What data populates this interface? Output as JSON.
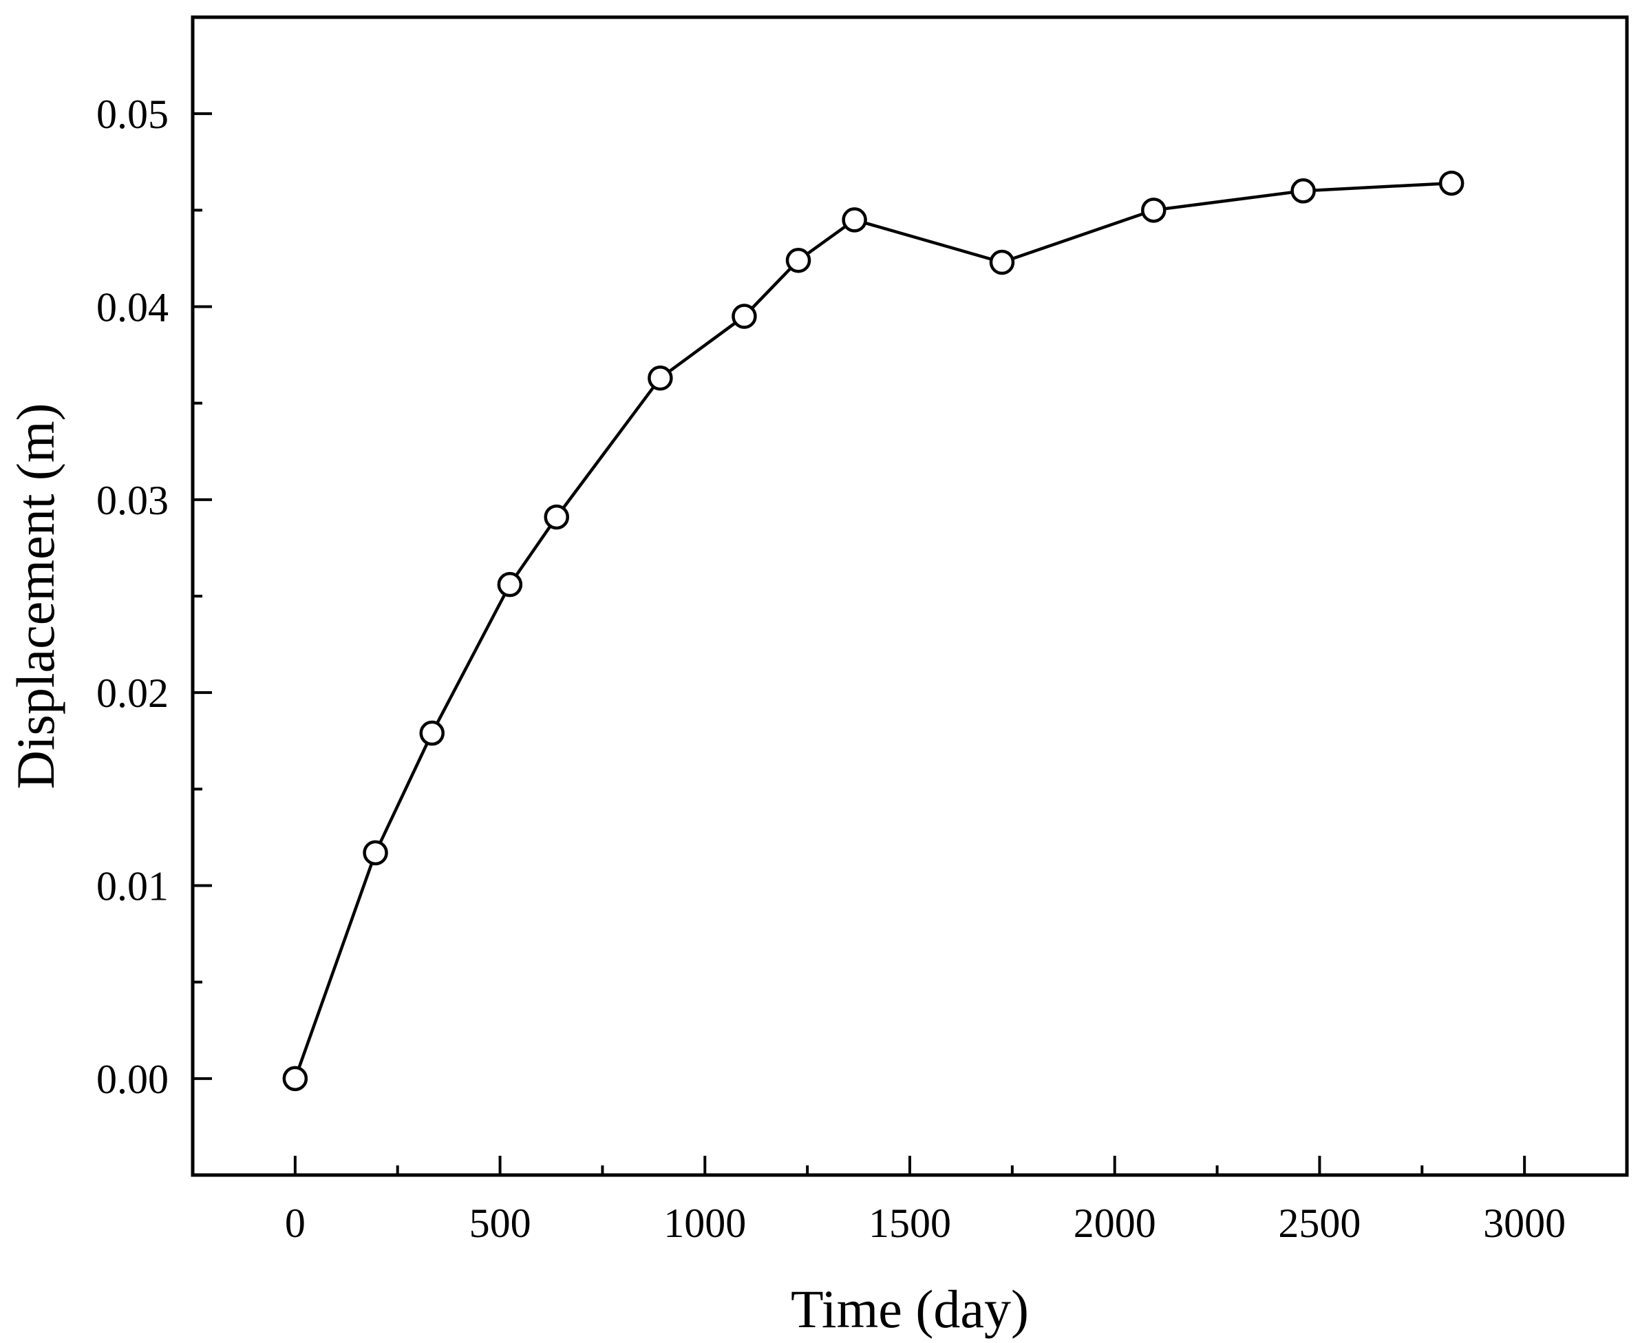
{
  "chart_data": {
    "type": "line",
    "xlabel": "Time (day)",
    "ylabel": "Displacement (m)",
    "xlim": [
      -250,
      3250
    ],
    "ylim": [
      -0.005,
      0.055
    ],
    "x_ticks": [
      0,
      500,
      1000,
      1500,
      2000,
      2500,
      3000
    ],
    "x_tick_labels": [
      "0",
      "500",
      "1000",
      "1500",
      "2000",
      "2500",
      "3000"
    ],
    "x_minor_ticks": [
      250,
      750,
      1250,
      1750,
      2250,
      2750
    ],
    "y_ticks": [
      0.0,
      0.01,
      0.02,
      0.03,
      0.04,
      0.05
    ],
    "y_tick_labels": [
      "0.00",
      "0.01",
      "0.02",
      "0.03",
      "0.04",
      "0.05"
    ],
    "y_minor_ticks": [
      0.005,
      0.015,
      0.025,
      0.035,
      0.045
    ],
    "grid": false,
    "legend": "none",
    "marker": "open-circle",
    "line_color": "#000000",
    "series": [
      {
        "x": [
          0,
          196,
          334,
          524,
          638,
          891,
          1096,
          1228,
          1365,
          1725,
          2095,
          2460,
          2822
        ],
        "y": [
          0.0,
          0.0117,
          0.0179,
          0.0256,
          0.0291,
          0.0363,
          0.0395,
          0.0424,
          0.0445,
          0.0423,
          0.045,
          0.046,
          0.0464
        ]
      }
    ]
  }
}
